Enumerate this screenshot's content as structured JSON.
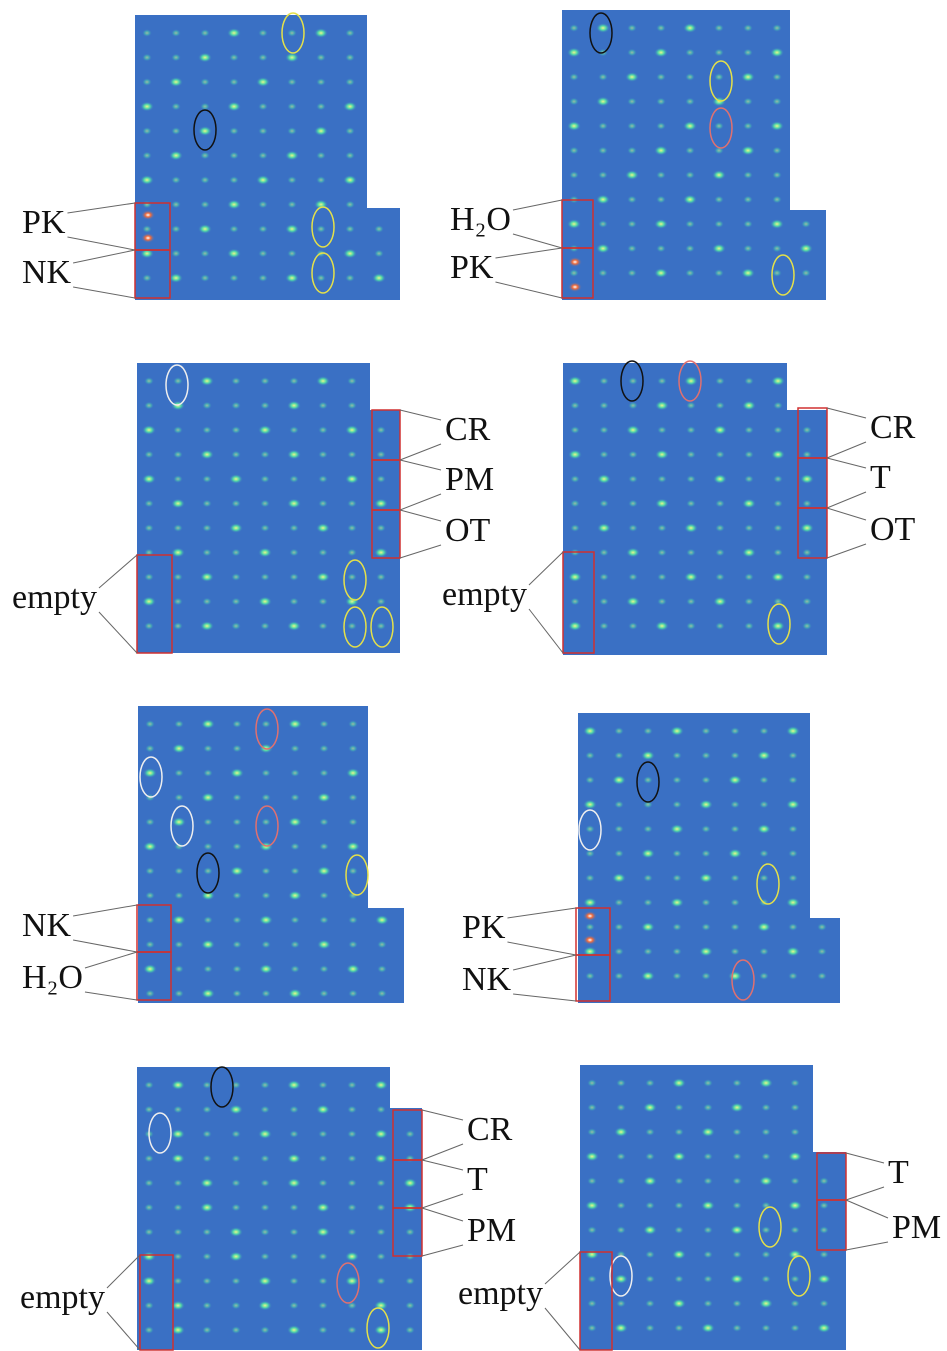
{
  "panels": [
    {
      "labels": [
        "PK",
        "NK"
      ]
    },
    {
      "labels": [
        "H₂O",
        "PK"
      ]
    },
    {
      "labels": [
        "CR",
        "PM",
        "OT",
        "empty"
      ]
    },
    {
      "labels": [
        "CR",
        "T",
        "OT",
        "empty"
      ]
    },
    {
      "labels": [
        "NK",
        "H₂O"
      ]
    },
    {
      "labels": [
        "PK",
        "NK"
      ]
    },
    {
      "labels": [
        "CR",
        "T",
        "PM",
        "empty"
      ]
    },
    {
      "labels": [
        "T",
        "PM",
        "empty"
      ]
    }
  ]
}
